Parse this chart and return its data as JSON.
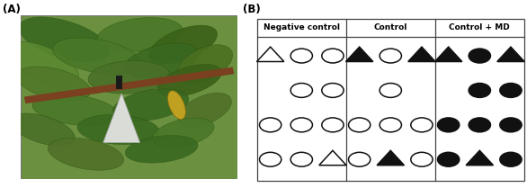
{
  "panel_A_label": "(A)",
  "panel_B_label": "(B)",
  "columns": [
    "Negative control",
    "Control",
    "Control + MD"
  ],
  "grids": [
    {
      "name": "Negative control",
      "rows": [
        [
          {
            "x": 0,
            "shape": "triangle",
            "filled": false
          },
          {
            "x": 1,
            "shape": "circle",
            "filled": false
          },
          {
            "x": 2,
            "shape": "circle",
            "filled": false
          }
        ],
        [
          {
            "x": 1,
            "shape": "circle",
            "filled": false
          },
          {
            "x": 2,
            "shape": "circle",
            "filled": false
          }
        ],
        [
          {
            "x": 0,
            "shape": "circle",
            "filled": false
          },
          {
            "x": 1,
            "shape": "circle",
            "filled": false
          },
          {
            "x": 2,
            "shape": "circle",
            "filled": false
          }
        ],
        [
          {
            "x": 0,
            "shape": "circle",
            "filled": false
          },
          {
            "x": 1,
            "shape": "circle",
            "filled": false
          },
          {
            "x": 2,
            "shape": "triangle",
            "filled": false
          }
        ]
      ]
    },
    {
      "name": "Control",
      "rows": [
        [
          {
            "x": 0,
            "shape": "triangle",
            "filled": true
          },
          {
            "x": 1,
            "shape": "circle",
            "filled": false
          },
          {
            "x": 2,
            "shape": "triangle",
            "filled": true
          }
        ],
        [
          {
            "x": 1,
            "shape": "circle",
            "filled": false
          }
        ],
        [
          {
            "x": 0,
            "shape": "circle",
            "filled": false
          },
          {
            "x": 1,
            "shape": "circle",
            "filled": false
          },
          {
            "x": 2,
            "shape": "circle",
            "filled": false
          }
        ],
        [
          {
            "x": 0,
            "shape": "circle",
            "filled": false
          },
          {
            "x": 1,
            "shape": "triangle",
            "filled": true
          },
          {
            "x": 2,
            "shape": "circle",
            "filled": false
          }
        ]
      ]
    },
    {
      "name": "Control + MD",
      "rows": [
        [
          {
            "x": 0,
            "shape": "triangle",
            "filled": true
          },
          {
            "x": 1,
            "shape": "circle",
            "filled": true
          },
          {
            "x": 2,
            "shape": "triangle",
            "filled": true
          }
        ],
        [
          {
            "x": 1,
            "shape": "circle",
            "filled": true
          },
          {
            "x": 2,
            "shape": "circle",
            "filled": true
          }
        ],
        [
          {
            "x": 0,
            "shape": "circle",
            "filled": true
          },
          {
            "x": 1,
            "shape": "circle",
            "filled": true
          },
          {
            "x": 2,
            "shape": "circle",
            "filled": true
          }
        ],
        [
          {
            "x": 0,
            "shape": "circle",
            "filled": true
          },
          {
            "x": 1,
            "shape": "triangle",
            "filled": true
          },
          {
            "x": 2,
            "shape": "circle",
            "filled": true
          }
        ]
      ]
    }
  ],
  "border_color": "#444444",
  "symbol_color": "#111111",
  "header_fontsize": 6.5,
  "label_fontsize": 8.5,
  "photo_bg": "#6a9040",
  "photo_branch_color": "#7a4020",
  "photo_leaf_colors": [
    "#4a7a28",
    "#3a6a18",
    "#5a8a38",
    "#4a7a28",
    "#608030",
    "#4a7a28",
    "#3a6a18"
  ],
  "photo_fruit_color": "#c0a020",
  "photo_trap_color": "#e8e8e8"
}
